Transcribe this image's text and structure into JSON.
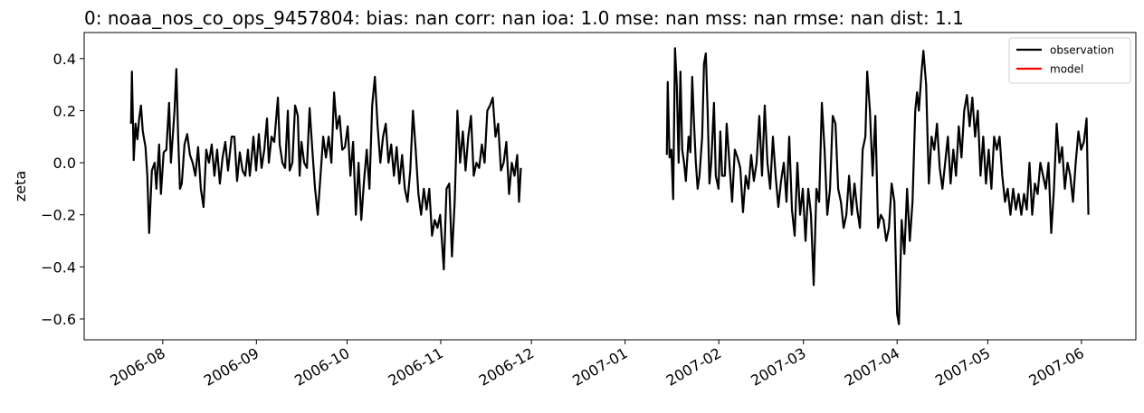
{
  "chart_data": {
    "type": "line",
    "title": "0: noaa_nos_co_ops_9457804: bias: nan  corr: nan  ioa: 1.0  mse: nan  mss: nan  rmse: nan  dist: 1.1",
    "y_label": "zeta",
    "xlim": [
      -26,
      322
    ],
    "xticks": [
      {
        "value": 0,
        "label": "2006-08"
      },
      {
        "value": 31,
        "label": "2006-09"
      },
      {
        "value": 61,
        "label": "2006-10"
      },
      {
        "value": 92,
        "label": "2006-11"
      },
      {
        "value": 122,
        "label": "2006-12"
      },
      {
        "value": 153,
        "label": "2007-01"
      },
      {
        "value": 184,
        "label": "2007-02"
      },
      {
        "value": 212,
        "label": "2007-03"
      },
      {
        "value": 243,
        "label": "2007-04"
      },
      {
        "value": 273,
        "label": "2007-05"
      },
      {
        "value": 304,
        "label": "2007-06"
      }
    ],
    "ylim": [
      -0.68,
      0.5
    ],
    "yticks": [
      {
        "value": -0.6,
        "label": "−0.6"
      },
      {
        "value": -0.4,
        "label": "−0.4"
      },
      {
        "value": -0.2,
        "label": "−0.2"
      },
      {
        "value": 0,
        "label": "0.0"
      },
      0.2,
      0.4
    ],
    "grid": false,
    "legend": "upper right",
    "x": [
      -10.5,
      -10.2,
      -9.6,
      -9,
      -8.4,
      -7.8,
      -7.2,
      -6.6,
      -5.7,
      -5.1,
      -4.5,
      -3.6,
      -2.7,
      -2.1,
      -1.2,
      -0.6,
      0.3,
      1.2,
      2.1,
      2.7,
      3.9,
      4.5,
      5.1,
      5.7,
      6.3,
      7.2,
      8.1,
      9,
      9.9,
      10.8,
      11.7,
      12.6,
      13.5,
      14.4,
      15.3,
      16.2,
      17.1,
      18,
      18.9,
      19.8,
      20.7,
      21.6,
      22.8,
      23.7,
      24.6,
      25.5,
      26.4,
      27.3,
      28.2,
      28.8,
      29.4,
      30,
      30.9,
      31.8,
      32.7,
      33.6,
      34.5,
      35.1,
      36,
      36.9,
      38.1,
      38.7,
      39.6,
      40.5,
      41.4,
      42,
      42.9,
      43.8,
      44.7,
      45.3,
      45.9,
      46.8,
      47.7,
      48.6,
      49.5,
      50.4,
      51.3,
      52.2,
      53.1,
      54,
      54.9,
      55.8,
      56.7,
      57.6,
      58.5,
      59.4,
      60.3,
      61.2,
      62.1,
      63,
      63.9,
      64.8,
      65.7,
      66.6,
      67.5,
      68.4,
      69.3,
      70.2,
      71.1,
      72,
      72.9,
      73.8,
      74.7,
      75.6,
      76.5,
      77.4,
      78.3,
      79.2,
      80.1,
      81,
      81.9,
      82.8,
      83.7,
      84.6,
      85.5,
      86.4,
      87.3,
      88.2,
      89.1,
      90,
      90.9,
      91.8,
      93,
      93.9,
      94.8,
      95.7,
      96.6,
      97.5,
      98.4,
      99.3,
      100.2,
      101.1,
      102,
      102.9,
      103.8,
      104.7,
      105.6,
      106.5,
      107.4,
      108.3,
      109.2,
      110.1,
      111,
      111.9,
      112.8,
      113.7,
      114.6,
      115.5,
      116.4,
      117.3,
      117.9,
      118.5,
      140,
      166.8,
      167.1,
      167.7,
      168.3,
      168.9,
      169.5,
      170.1,
      170.7,
      171.3,
      171.9,
      172.5,
      173.1,
      174,
      174.6,
      175.2,
      175.8,
      176.4,
      177,
      177.6,
      178.5,
      179.1,
      179.7,
      180.3,
      180.9,
      181.5,
      182.4,
      183,
      183.9,
      184.5,
      185.1,
      186,
      186.6,
      187.5,
      188.4,
      189.3,
      190.2,
      191.1,
      192,
      192.9,
      193.8,
      194.7,
      195.6,
      196.5,
      197.4,
      198.3,
      199.2,
      200.1,
      201,
      201.9,
      202.8,
      203.7,
      204.6,
      205.5,
      206.4,
      207.3,
      208.2,
      209.1,
      210,
      210.9,
      211.8,
      212.7,
      213.6,
      214.5,
      215.4,
      216.3,
      217.2,
      218.1,
      219,
      219.9,
      220.8,
      221.7,
      222.6,
      223.5,
      224.4,
      225.3,
      226.2,
      227.1,
      228,
      228.9,
      229.8,
      230.7,
      231.6,
      232.5,
      233.1,
      234,
      234.9,
      235.8,
      236.7,
      237.6,
      238.5,
      239.4,
      240.3,
      241.2,
      242.1,
      243,
      243.6,
      244.5,
      245.4,
      246.3,
      247.2,
      248.1,
      249,
      249.6,
      250.2,
      251.1,
      251.7,
      252.6,
      253.5,
      254.4,
      255.3,
      256.2,
      257.1,
      258,
      258.9,
      259.8,
      260.7,
      261.6,
      262.5,
      263.4,
      264.3,
      265.2,
      266.1,
      267,
      267.9,
      268.8,
      269.7,
      270.6,
      271.5,
      272.4,
      273.3,
      274.2,
      275.1,
      276,
      276.9,
      277.8,
      278.7,
      279.6,
      280.5,
      281.4,
      282.3,
      283.2,
      284.1,
      285,
      285.9,
      286.8,
      287.7,
      288.6,
      289.5,
      290.4,
      291.3,
      292.2,
      293.1,
      294,
      294.9,
      295.8,
      296.7,
      297.6,
      298.5,
      299.4,
      300.3,
      301.2,
      302.1,
      303,
      303.9,
      304.8,
      305.7,
      306.3
    ],
    "series": [
      {
        "name": "observation",
        "color": "#000000",
        "values": [
          0.15,
          0.35,
          0.01,
          0.15,
          0.09,
          0.17,
          0.22,
          0.12,
          0.06,
          -0.05,
          -0.27,
          -0.03,
          0.0,
          -0.1,
          0.07,
          -0.12,
          0.04,
          0.05,
          0.23,
          0.0,
          0.2,
          0.36,
          0.1,
          -0.1,
          -0.08,
          0.07,
          0.11,
          0.03,
          0.0,
          -0.05,
          0.06,
          -0.1,
          -0.17,
          0.05,
          0.0,
          0.07,
          -0.05,
          0.05,
          -0.08,
          0.02,
          0.08,
          -0.03,
          0.1,
          0.1,
          -0.07,
          0.04,
          -0.03,
          -0.05,
          0.05,
          -0.05,
          0.02,
          0.1,
          -0.03,
          0.11,
          -0.02,
          0.05,
          0.17,
          0.0,
          0.1,
          0.08,
          0.25,
          0.07,
          0.0,
          -0.02,
          0.2,
          -0.03,
          0.0,
          0.22,
          0.18,
          -0.05,
          0.08,
          0.0,
          -0.02,
          0.21,
          0.05,
          -0.1,
          -0.2,
          -0.05,
          0.1,
          0.02,
          0.1,
          0.0,
          0.27,
          0.13,
          0.18,
          0.05,
          0.06,
          0.14,
          -0.05,
          0.08,
          -0.2,
          0.0,
          -0.22,
          -0.07,
          0.05,
          -0.1,
          0.22,
          0.33,
          0.14,
          0.0,
          0.1,
          0.15,
          0.0,
          0.07,
          -0.05,
          0.06,
          -0.08,
          0.03,
          -0.1,
          -0.15,
          -0.03,
          0.2,
          0.05,
          -0.12,
          -0.2,
          -0.1,
          -0.18,
          -0.1,
          -0.28,
          -0.22,
          -0.25,
          -0.2,
          -0.41,
          -0.1,
          -0.08,
          -0.36,
          -0.15,
          0.2,
          0.0,
          0.12,
          -0.03,
          0.1,
          0.18,
          -0.05,
          0.0,
          -0.02,
          0.07,
          0.0,
          0.2,
          0.22,
          0.25,
          0.1,
          0.15,
          -0.03,
          0.0,
          0.08,
          -0.12,
          0.0,
          -0.05,
          0.03,
          -0.15,
          -0.02,
          null,
          0.03,
          0.31,
          0.02,
          0.05,
          -0.14,
          0.44,
          0.3,
          0.0,
          0.35,
          0.05,
          0.0,
          -0.07,
          0.1,
          0.04,
          0.33,
          0.15,
          0.0,
          -0.1,
          -0.05,
          0.1,
          0.38,
          0.42,
          0.2,
          -0.08,
          0.0,
          0.23,
          -0.05,
          -0.1,
          0.12,
          -0.05,
          -0.05,
          0.15,
          0.0,
          -0.15,
          0.05,
          0.02,
          -0.02,
          -0.19,
          -0.05,
          -0.1,
          0.03,
          -0.07,
          0.0,
          0.18,
          -0.05,
          0.22,
          0.0,
          -0.1,
          0.1,
          -0.05,
          -0.17,
          -0.07,
          0.0,
          -0.15,
          0.1,
          -0.18,
          -0.28,
          0.0,
          -0.2,
          -0.1,
          -0.3,
          -0.1,
          -0.2,
          -0.47,
          -0.1,
          -0.15,
          0.23,
          0.05,
          -0.2,
          -0.1,
          0.18,
          0.15,
          -0.1,
          -0.15,
          -0.25,
          -0.2,
          -0.05,
          -0.2,
          -0.08,
          -0.18,
          -0.25,
          0.05,
          0.1,
          0.35,
          0.2,
          -0.05,
          0.18,
          -0.25,
          -0.2,
          -0.22,
          -0.3,
          -0.25,
          -0.08,
          -0.15,
          -0.58,
          -0.62,
          -0.22,
          -0.35,
          -0.1,
          -0.3,
          -0.15,
          0.2,
          0.27,
          0.2,
          0.35,
          0.43,
          0.3,
          -0.08,
          0.1,
          0.05,
          0.15,
          -0.02,
          -0.1,
          0.0,
          0.1,
          -0.08,
          0.05,
          -0.05,
          0.14,
          0.02,
          0.2,
          0.26,
          0.14,
          0.25,
          0.1,
          0.2,
          -0.05,
          0.1,
          -0.08,
          0.05,
          -0.1,
          0.1,
          0.05,
          0.1,
          -0.05,
          -0.15,
          -0.1,
          -0.2,
          -0.1,
          -0.18,
          -0.12,
          -0.2,
          -0.12,
          -0.18,
          0.0,
          -0.2,
          -0.08,
          -0.12,
          0.0,
          -0.05,
          -0.1,
          0.0,
          -0.27,
          -0.1,
          0.15,
          0.0,
          0.06,
          -0.1,
          0.0,
          -0.05,
          -0.15,
          0.0,
          0.12,
          0.05,
          0.08,
          0.17,
          -0.2
        ]
      },
      {
        "name": "model",
        "color": "#ff0000"
      }
    ]
  }
}
